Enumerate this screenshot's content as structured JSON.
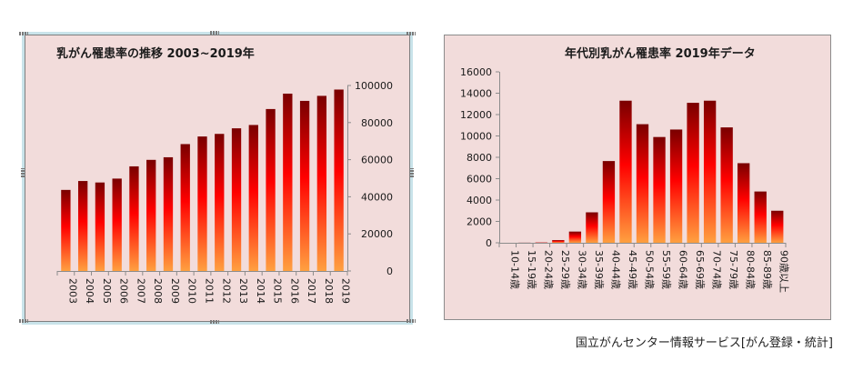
{
  "chart_data": [
    {
      "type": "bar",
      "title": "乳がん罹患率の推移 2003~2019年",
      "categories": [
        "2003",
        "2004",
        "2005",
        "2006",
        "2007",
        "2008",
        "2009",
        "2010",
        "2011",
        "2012",
        "2013",
        "2014",
        "2015",
        "2016",
        "2017",
        "2018",
        "2019"
      ],
      "values": [
        43700,
        48500,
        47700,
        49800,
        56400,
        59900,
        61300,
        68400,
        72500,
        73900,
        76900,
        78700,
        87300,
        95600,
        91700,
        94400,
        97800
      ],
      "ylim": [
        0,
        100000
      ],
      "yticks": [
        0,
        20000,
        40000,
        60000,
        80000,
        100000
      ],
      "axis_side": "right",
      "grid": false,
      "legend": "none",
      "colors": [
        "#7a0000",
        "#ff0000",
        "#ffa040"
      ]
    },
    {
      "type": "bar",
      "title": "年代別乳がん罹患率 2019年データ",
      "categories": [
        "10-14歳",
        "15-19歳",
        "20-24歳",
        "25-29歳",
        "30-34歳",
        "35-39歳",
        "40-44歳",
        "45-49歳",
        "50-54歳",
        "55-59歳",
        "60-64歳",
        "65-69歳",
        "70-74歳",
        "75-79歳",
        "80-84歳",
        "85-89歳",
        "90歳以上"
      ],
      "values": [
        0,
        10,
        30,
        250,
        1050,
        2850,
        7650,
        13300,
        11100,
        9900,
        10600,
        13100,
        13300,
        10800,
        7450,
        4800,
        3000
      ],
      "ylim": [
        0,
        16000
      ],
      "yticks": [
        0,
        2000,
        4000,
        6000,
        8000,
        10000,
        12000,
        14000,
        16000
      ],
      "axis_side": "left",
      "grid": false,
      "legend": "none",
      "colors": [
        "#7a0000",
        "#ff0000",
        "#ffa040"
      ]
    }
  ],
  "source": "国立がんセンター情報サービス[がん登録・統計]"
}
